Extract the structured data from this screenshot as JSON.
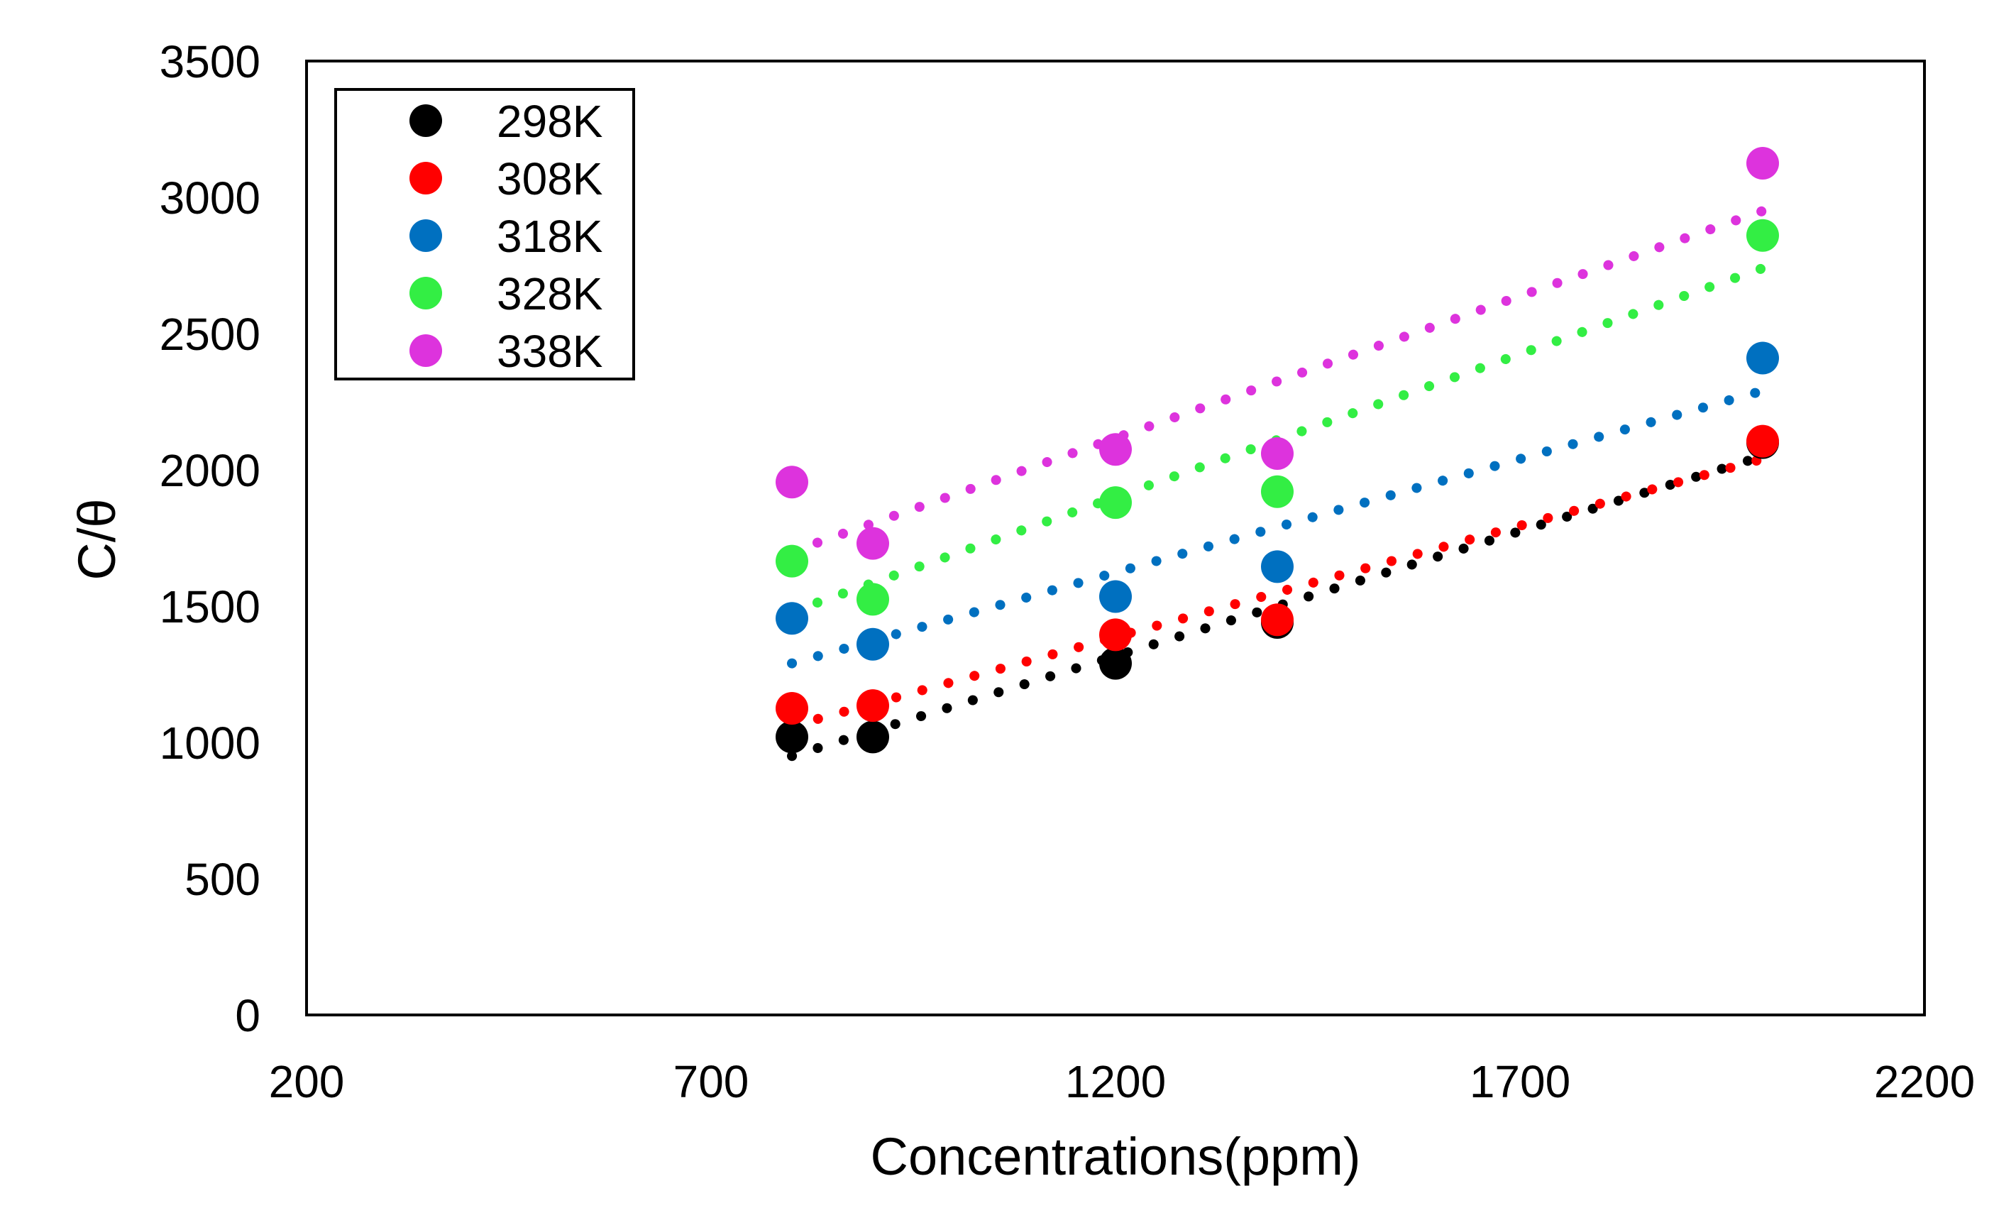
{
  "chart_data": {
    "type": "scatter",
    "title": "",
    "xlabel": "Concentrations(ppm)",
    "ylabel": "C/θ",
    "xlim": [
      200,
      2200
    ],
    "ylim": [
      0,
      3500
    ],
    "xticks": [
      "200",
      "700",
      "1200",
      "1700",
      "2200"
    ],
    "yticks": [
      "0",
      "500",
      "1000",
      "1500",
      "2000",
      "2500",
      "3000",
      "3500"
    ],
    "grid": false,
    "legend_position": "top-left",
    "trendline": "linear (dotted)",
    "x": [
      800,
      900,
      1200,
      1400,
      2000
    ],
    "series": [
      {
        "name": "298K",
        "color": "#000000",
        "values": [
          1020,
          1020,
          1290,
          1440,
          2100
        ],
        "trend": {
          "x": [
            800,
            2000
          ],
          "y": [
            950,
            2050
          ]
        }
      },
      {
        "name": "308K",
        "color": "#ff0000",
        "values": [
          1125,
          1135,
          1395,
          1450,
          2105
        ],
        "trend": {
          "x": [
            800,
            2000
          ],
          "y": [
            1060,
            2040
          ]
        }
      },
      {
        "name": "318K",
        "color": "#0070c0",
        "values": [
          1455,
          1360,
          1535,
          1645,
          2410
        ],
        "trend": {
          "x": [
            800,
            2000
          ],
          "y": [
            1290,
            2290
          ]
        }
      },
      {
        "name": "328K",
        "color": "#33ee44",
        "values": [
          1665,
          1525,
          1880,
          1920,
          2860
        ],
        "trend": {
          "x": [
            800,
            2000
          ],
          "y": [
            1480,
            2740
          ]
        }
      },
      {
        "name": "338K",
        "color": "#dd33dd",
        "values": [
          1955,
          1730,
          2075,
          2060,
          3125
        ],
        "trend": {
          "x": [
            800,
            2000
          ],
          "y": [
            1700,
            2950
          ]
        }
      }
    ]
  }
}
